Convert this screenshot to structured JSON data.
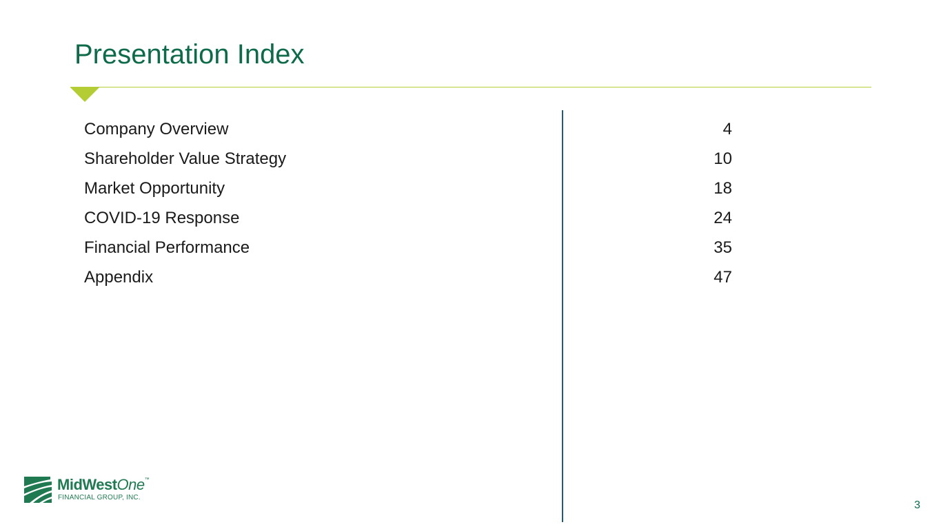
{
  "slide": {
    "title": "Presentation Index",
    "page_number": "3"
  },
  "index": {
    "items": [
      {
        "label": "Company Overview",
        "page": "4"
      },
      {
        "label": "Shareholder Value Strategy",
        "page": "10"
      },
      {
        "label": "Market Opportunity",
        "page": "18"
      },
      {
        "label": "COVID-19 Response",
        "page": "24"
      },
      {
        "label": "Financial Performance",
        "page": "35"
      },
      {
        "label": "Appendix",
        "page": "47"
      }
    ]
  },
  "logo": {
    "name_part1": "MidWest",
    "name_part2": "One",
    "trademark": "™",
    "subtitle": "FINANCIAL GROUP, INC."
  },
  "colors": {
    "title_green": "#0d6b4a",
    "accent_lime": "#b5cd35",
    "divider_blue": "#1e5a7a",
    "logo_green": "#1f7a52"
  }
}
